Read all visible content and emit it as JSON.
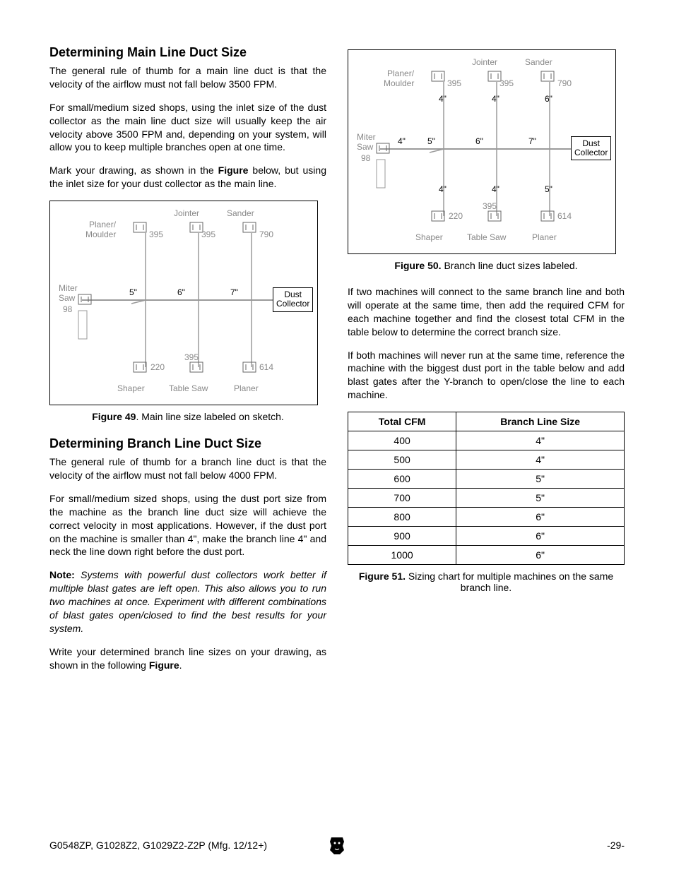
{
  "left": {
    "heading1": "Determining Main Line Duct Size",
    "p1": "The general rule of thumb for a main line duct is that the velocity of the airflow must not fall below 3500 FPM.",
    "p2": "For small/medium sized shops, using the inlet size of the dust collector as the main line duct size will usually keep the air velocity above 3500 FPM and, depending on your system, will allow you to keep multiple branches open at one time.",
    "p3a": "Mark your drawing, as shown in the ",
    "p3b": "Figure",
    "p3c": " below, but using the inlet size for your dust collector as the main line.",
    "fig49_label": "Figure 49",
    "fig49_text": ". Main line size labeled on sketch.",
    "heading2": "Determining Branch Line Duct Size",
    "p4": "The general rule of thumb for a branch line duct is that the velocity of the airflow must not fall below 4000 FPM.",
    "p5": "For small/medium sized shops, using the dust port size from the machine as the branch line duct size will achieve the correct velocity in most applications. However, if the dust port on the machine is smaller than 4\", make the branch line 4\" and neck the line down right before the dust port.",
    "noteLabel": "Note:",
    "noteBody": " Systems with powerful dust collectors work better if multiple blast gates are left open. This also allows you to run two machines at once. Experiment with different combinations of blast gates open/closed to find the best results for your system.",
    "p6a": "Write your determined branch line sizes on your drawing, as shown in the following ",
    "p6b": "Figure",
    "p6c": "."
  },
  "right": {
    "fig50_label": "Figure 50.",
    "fig50_text": " Branch line duct sizes labeled.",
    "p1": "If two machines will connect to the same branch line and both will operate at the same time, then add the required CFM for each machine together and find the closest total CFM in the table below to determine the correct branch size.",
    "p2": "If both machines will never run at the same time, reference the machine with the biggest dust port in the table below and add blast gates after the Y-branch to open/close the line to each machine.",
    "table": {
      "head": [
        "Total CFM",
        "Branch Line Size"
      ],
      "rows": [
        [
          "400",
          "4\""
        ],
        [
          "500",
          "4\""
        ],
        [
          "600",
          "5\""
        ],
        [
          "700",
          "5\""
        ],
        [
          "800",
          "6\""
        ],
        [
          "900",
          "6\""
        ],
        [
          "1000",
          "6\""
        ]
      ]
    },
    "fig51_label": "Figure 51.",
    "fig51_text": " Sizing chart for multiple machines on the same branch line."
  },
  "diagram": {
    "labels": {
      "jointer": "Jointer",
      "sander": "Sander",
      "planerMoulder1": "Planer/",
      "planerMoulder2": "Moulder",
      "miter1": "Miter",
      "miter2": "Saw",
      "miter3": "98",
      "dust1": "Dust",
      "dust2": "Collector",
      "shaper": "Shaper",
      "tableSaw": "Table Saw",
      "planer": "Planer"
    },
    "cfm": {
      "pm": "395",
      "jointer": "395",
      "sander": "790",
      "shaper": "220",
      "tablesaw": "395",
      "planer": "614"
    },
    "mainSizes": {
      "s1": "5\"",
      "s2": "6\"",
      "s3": "7\""
    },
    "branchSizes": {
      "top1": "4\"",
      "top2": "4\"",
      "top3": "6\"",
      "mid": "4\"",
      "bot1": "4\"",
      "bot2": "4\"",
      "bot3": "5\""
    },
    "colors": {
      "line": "#9a9a9a",
      "text": "#888888",
      "box": "#000000"
    }
  },
  "footer": {
    "left": "G0548ZP, G1028Z2, G1029Z2-Z2P (Mfg. 12/12+)",
    "right": "-29-"
  }
}
